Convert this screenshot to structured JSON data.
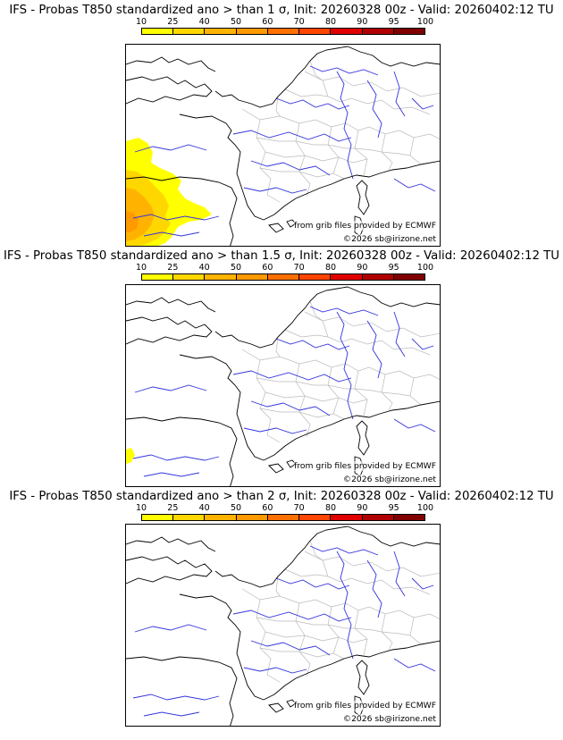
{
  "panels": [
    {
      "title": "IFS - Probas T850  standardized ano > than 1 σ, Init: 20260328 00z - Valid: 20260402:12 TU",
      "source_credit": "from grib files provided by ECMWF",
      "site_credit": "©2026 sb@irizone.net"
    },
    {
      "title": "IFS - Probas T850  standardized ano > than 1.5 σ, Init: 20260328 00z - Valid: 20260402:12 TU",
      "source_credit": "from grib files provided by ECMWF",
      "site_credit": "©2026 sb@irizone.net"
    },
    {
      "title": "IFS - Probas T850  standardized ano > than 2 σ, Init: 20260328 00z - Valid: 20260402:12 TU",
      "source_credit": "from grib files provided by ECMWF",
      "site_credit": "©2026 sb@irizone.net"
    }
  ],
  "colorbar": {
    "labels": [
      "10",
      "25",
      "40",
      "50",
      "60",
      "70",
      "80",
      "90",
      "95",
      "100"
    ],
    "colors": [
      "#ffff00",
      "#ffd700",
      "#ffb300",
      "#ff9900",
      "#ff7000",
      "#ff4500",
      "#e00000",
      "#b00000",
      "#800000"
    ]
  },
  "colors": {
    "coast": "#000000",
    "borders": "#bbbbbb",
    "rivers": "#3333dd"
  }
}
